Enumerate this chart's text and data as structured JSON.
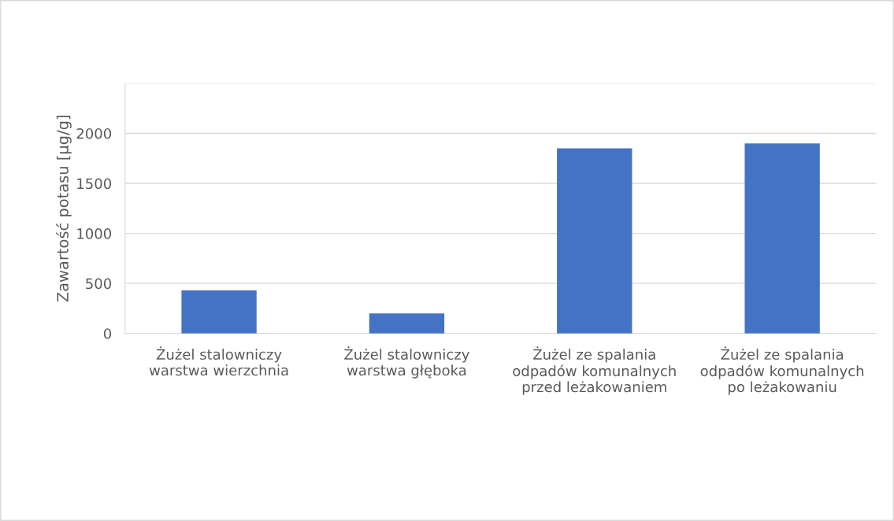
{
  "chart_data": {
    "type": "bar",
    "ylabel": "Zawartość potasu [µg/g]",
    "categories": [
      "Żużel stalowniczy warstwa wierzchnia",
      "Żużel stalowniczy warstwa głęboka",
      "Żużel ze spalania odpadów komunalnych przed leżakowaniem",
      "Żużel ze spalania odpadów komunalnych po leżakowaniu"
    ],
    "values": [
      430,
      200,
      1850,
      1900
    ],
    "color": "#4472c4",
    "ylim": [
      0,
      2500
    ],
    "yticks": [
      0,
      500,
      1000,
      1500,
      2000,
      {
        "value": 2500,
        "label": null
      }
    ],
    "grid": "y",
    "legend": false
  }
}
